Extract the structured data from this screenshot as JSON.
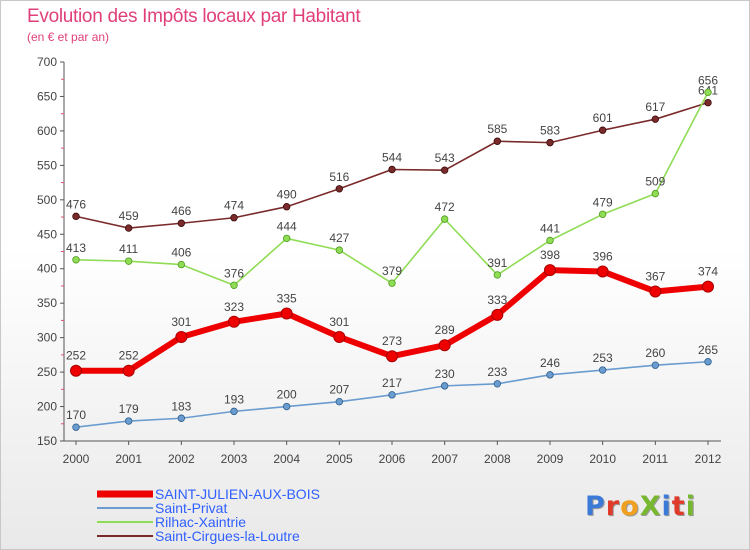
{
  "header": {
    "title": "Evolution des Impôts locaux par Habitant",
    "subtitle": "(en € et par an)"
  },
  "logo": {
    "text": "ProXiti",
    "letter_colors": [
      "#3c7ad8",
      "#e03a2a",
      "#f0a020",
      "#78b830",
      "#3c7ad8",
      "#e03a2a",
      "#78b830"
    ]
  },
  "chart_data": {
    "type": "line",
    "title": "Evolution des Impôts locaux par Habitant",
    "subtitle": "(en € et par an)",
    "xlabel": "",
    "ylabel": "",
    "x": [
      "2000",
      "2001",
      "2002",
      "2003",
      "2004",
      "2005",
      "2006",
      "2007",
      "2008",
      "2009",
      "2010",
      "2011",
      "2012"
    ],
    "ylim": [
      150,
      700
    ],
    "yticks": [
      "150",
      "200",
      "250",
      "300",
      "350",
      "400",
      "450",
      "500",
      "550",
      "600",
      "650",
      "700"
    ],
    "grid": false,
    "legend_position": "bottom-left",
    "series": [
      {
        "name": "SAINT-JULIEN-AUX-BOIS",
        "color": "#ee0000",
        "values": [
          252,
          252,
          301,
          323,
          335,
          301,
          273,
          289,
          333,
          398,
          396,
          367,
          374
        ],
        "labels": [
          "252",
          "252",
          "301",
          "323",
          "335",
          "301",
          "273",
          "289",
          "333",
          "398",
          "396",
          "367",
          "374"
        ]
      },
      {
        "name": "Saint-Privat",
        "color": "#6a9ccf",
        "values": [
          170,
          179,
          183,
          193,
          200,
          207,
          217,
          230,
          233,
          246,
          253,
          260,
          265
        ],
        "labels": [
          "170",
          "179",
          "183",
          "193",
          "200",
          "207",
          "217",
          "230",
          "233",
          "246",
          "253",
          "260",
          "265"
        ]
      },
      {
        "name": "Rilhac-Xaintrie",
        "color": "#8fdc55",
        "values": [
          413,
          411,
          406,
          376,
          444,
          427,
          379,
          472,
          391,
          441,
          479,
          509,
          656
        ],
        "labels": [
          "413",
          "411",
          "406",
          "376",
          "444",
          "427",
          "379",
          "472",
          "391",
          "441",
          "479",
          "509",
          "656"
        ]
      },
      {
        "name": "Saint-Cirgues-la-Loutre",
        "color": "#7a2a2a",
        "values": [
          476,
          459,
          466,
          474,
          490,
          516,
          544,
          543,
          585,
          583,
          601,
          617,
          641
        ],
        "labels": [
          "476",
          "459",
          "466",
          "474",
          "490",
          "516",
          "544",
          "543",
          "585",
          "583",
          "601",
          "617",
          "641"
        ]
      }
    ]
  }
}
